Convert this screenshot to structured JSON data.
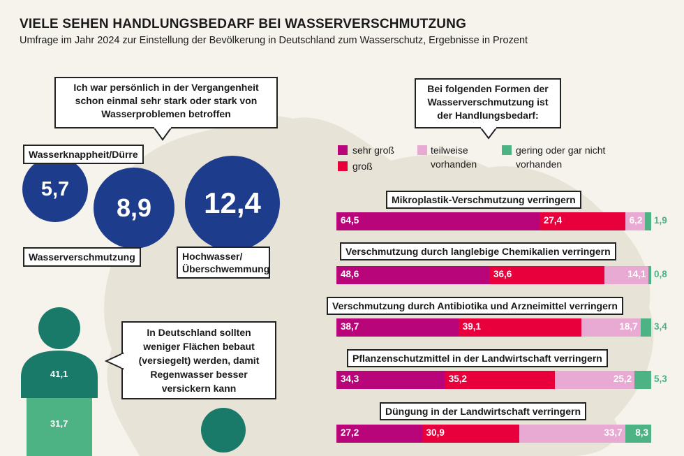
{
  "header": {
    "title": "VIELE SEHEN HANDLUNGSBEDARF BEI WASSERVERSCHMUTZUNG",
    "subtitle": "Umfrage im Jahr 2024 zur Einstellung der Bevölkerung in Deutschland zum Wasserschutz, Ergebnisse in Prozent"
  },
  "colors": {
    "navy": "#1e3c8c",
    "magenta": "#b8067a",
    "red": "#e8003c",
    "pink": "#e8a9d2",
    "green": "#4db384",
    "dark_green": "#1a7a6a",
    "map": "#e7e3d6"
  },
  "affected": {
    "question": "Ich war persönlich in der Vergangenheit schon einmal sehr stark oder stark von Wasserproblemen betroffen",
    "items": [
      {
        "label": "Wasserknappheit/Dürre",
        "value": 5.7,
        "display": "5,7"
      },
      {
        "label": "Wasserverschmutzung",
        "value": 8.9,
        "display": "8,9"
      },
      {
        "label": "Hochwasser/ Überschwemmung",
        "value": 12.4,
        "display": "12,4"
      }
    ]
  },
  "sealing": {
    "statement": "In Deutschland sollten weniger Flächen bebaut (versiegelt) werden, damit Regenwasser besser versickern kann",
    "values": [
      {
        "value": 41.1,
        "display": "41,1"
      },
      {
        "value": 31.7,
        "display": "31,7"
      }
    ]
  },
  "chart_data": {
    "type": "bar",
    "stacked": true,
    "orientation": "horizontal",
    "title": "Bei folgenden Formen der Wasserverschmutzung ist der Handlungsbedarf:",
    "legend": [
      {
        "label": "sehr groß",
        "color": "#b8067a"
      },
      {
        "label": "groß",
        "color": "#e8003c"
      },
      {
        "label": "teilweise vorhanden",
        "color": "#e8a9d2"
      },
      {
        "label": "gering oder gar nicht vorhanden",
        "color": "#4db384"
      }
    ],
    "categories": [
      "Mikroplastik-Verschmutzung verringern",
      "Verschmutzung durch langlebige Chemikalien verringern",
      "Verschmutzung durch Antibiotika und Arzneimittel verringern",
      "Pflanzenschutzmittel in der Landwirtschaft verringern",
      "Düngung in der Landwirtschaft verringern"
    ],
    "series": [
      {
        "name": "sehr groß",
        "values": [
          64.5,
          48.6,
          38.7,
          34.3,
          27.2
        ],
        "display": [
          "64,5",
          "48,6",
          "38,7",
          "34,3",
          "27,2"
        ]
      },
      {
        "name": "groß",
        "values": [
          27.4,
          36.6,
          39.1,
          35.2,
          30.9
        ],
        "display": [
          "27,4",
          "36,6",
          "39,1",
          "35,2",
          "30,9"
        ]
      },
      {
        "name": "teilweise vorhanden",
        "values": [
          6.2,
          14.1,
          18.7,
          25.2,
          33.7
        ],
        "display": [
          "6,2",
          "14,1",
          "18,7",
          "25,2",
          "33,7"
        ]
      },
      {
        "name": "gering oder gar nicht vorhanden",
        "values": [
          1.9,
          0.8,
          3.4,
          5.3,
          8.3
        ],
        "display": [
          "1,9",
          "0,8",
          "3,4",
          "5,3",
          "8,3"
        ]
      }
    ]
  }
}
